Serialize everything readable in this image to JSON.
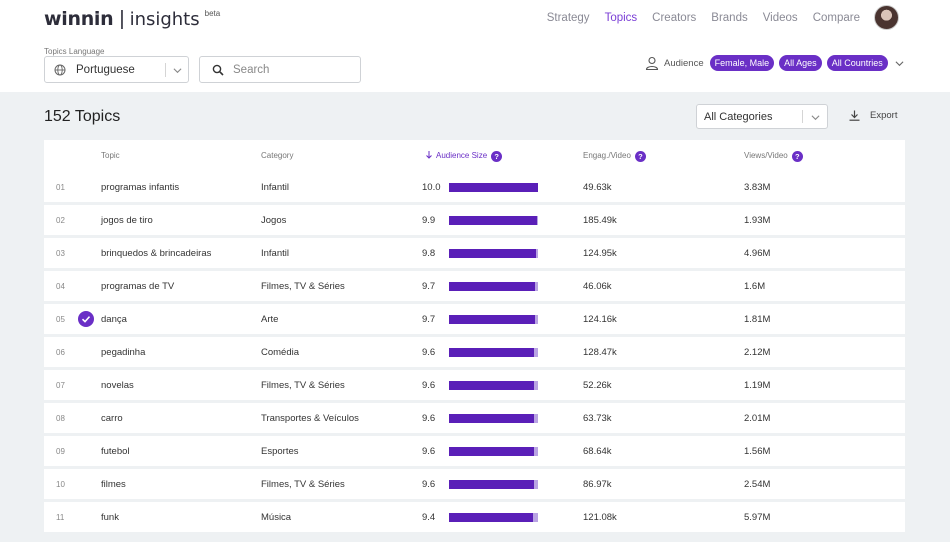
{
  "app": {
    "logo_main": "winnin",
    "logo_sep": "|",
    "logo_sub": "insights",
    "logo_beta": "beta"
  },
  "nav": [
    "Strategy",
    "Topics",
    "Creators",
    "Brands",
    "Videos",
    "Compare"
  ],
  "nav_active": "Topics",
  "language": {
    "label": "Topics Language",
    "value": "Portuguese"
  },
  "search": {
    "placeholder": "Search"
  },
  "audience": {
    "label": "Audience",
    "filters": [
      "Female, Male",
      "All Ages",
      "All Countries"
    ]
  },
  "page": {
    "title": "152 Topics"
  },
  "category_filter": {
    "value": "All Categories"
  },
  "export": {
    "label": "Export"
  },
  "colors": {
    "accent": "#6a2fc6",
    "bar": "#5a1fb8",
    "bar_track": "#b9a3e3"
  },
  "icons": {
    "language": "globe-icon",
    "search": "search-icon",
    "audience": "user-icon",
    "export": "download-icon",
    "dropdown": "chevron-down-icon",
    "sort": "arrow-down-icon",
    "help": "question-icon",
    "selected": "check-icon"
  },
  "table": {
    "headers": {
      "topic": "Topic",
      "category": "Category",
      "audience": "Audience Size",
      "engagement": "Engag./Video",
      "views": "Views/Video"
    },
    "audience_max": 10.0,
    "rows": [
      {
        "rank": "01",
        "topic": "programas infantis",
        "category": "Infantil",
        "audience": "10.0",
        "engagement": "49.63k",
        "views": "3.83M",
        "selected": false
      },
      {
        "rank": "02",
        "topic": "jogos de tiro",
        "category": "Jogos",
        "audience": "9.9",
        "engagement": "185.49k",
        "views": "1.93M",
        "selected": false
      },
      {
        "rank": "03",
        "topic": "brinquedos & brincadeiras",
        "category": "Infantil",
        "audience": "9.8",
        "engagement": "124.95k",
        "views": "4.96M",
        "selected": false
      },
      {
        "rank": "04",
        "topic": "programas de TV",
        "category": "Filmes, TV & Séries",
        "audience": "9.7",
        "engagement": "46.06k",
        "views": "1.6M",
        "selected": false
      },
      {
        "rank": "05",
        "topic": "dança",
        "category": "Arte",
        "audience": "9.7",
        "engagement": "124.16k",
        "views": "1.81M",
        "selected": true
      },
      {
        "rank": "06",
        "topic": "pegadinha",
        "category": "Comédia",
        "audience": "9.6",
        "engagement": "128.47k",
        "views": "2.12M",
        "selected": false
      },
      {
        "rank": "07",
        "topic": "novelas",
        "category": "Filmes, TV & Séries",
        "audience": "9.6",
        "engagement": "52.26k",
        "views": "1.19M",
        "selected": false
      },
      {
        "rank": "08",
        "topic": "carro",
        "category": "Transportes & Veículos",
        "audience": "9.6",
        "engagement": "63.73k",
        "views": "2.01M",
        "selected": false
      },
      {
        "rank": "09",
        "topic": "futebol",
        "category": "Esportes",
        "audience": "9.6",
        "engagement": "68.64k",
        "views": "1.56M",
        "selected": false
      },
      {
        "rank": "10",
        "topic": "filmes",
        "category": "Filmes, TV & Séries",
        "audience": "9.6",
        "engagement": "86.97k",
        "views": "2.54M",
        "selected": false
      },
      {
        "rank": "11",
        "topic": "funk",
        "category": "Música",
        "audience": "9.4",
        "engagement": "121.08k",
        "views": "5.97M",
        "selected": false
      }
    ]
  }
}
